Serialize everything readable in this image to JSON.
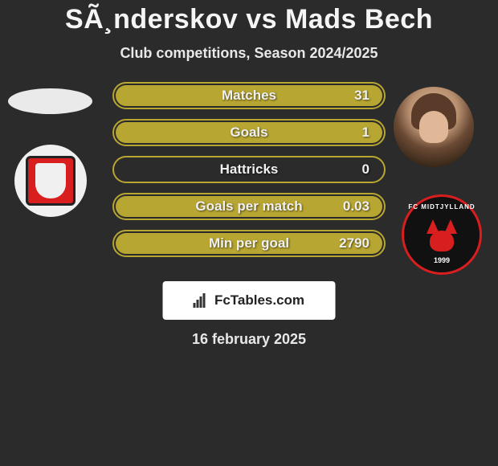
{
  "title": "SÃ¸nderskov vs Mads Bech",
  "subtitle": "Club competitions, Season 2024/2025",
  "date": "16 february 2025",
  "watermark": "FcTables.com",
  "colors": {
    "background": "#2b2b2b",
    "bar_border": "#b8a632",
    "bar_fill": "#b8a632",
    "text_light": "#f0f0f0",
    "badge_red": "#d81e1e",
    "badge_black": "#111111",
    "white": "#ffffff"
  },
  "stats": [
    {
      "label": "Matches",
      "value_right": "31",
      "fill_right_pct": 100
    },
    {
      "label": "Goals",
      "value_right": "1",
      "fill_right_pct": 100
    },
    {
      "label": "Hattricks",
      "value_right": "0",
      "fill_right_pct": 0
    },
    {
      "label": "Goals per match",
      "value_right": "0.03",
      "fill_right_pct": 100
    },
    {
      "label": "Min per goal",
      "value_right": "2790",
      "fill_right_pct": 100
    }
  ],
  "right_club": {
    "name_top": "FC MIDTJYLLAND",
    "year": "1999"
  }
}
